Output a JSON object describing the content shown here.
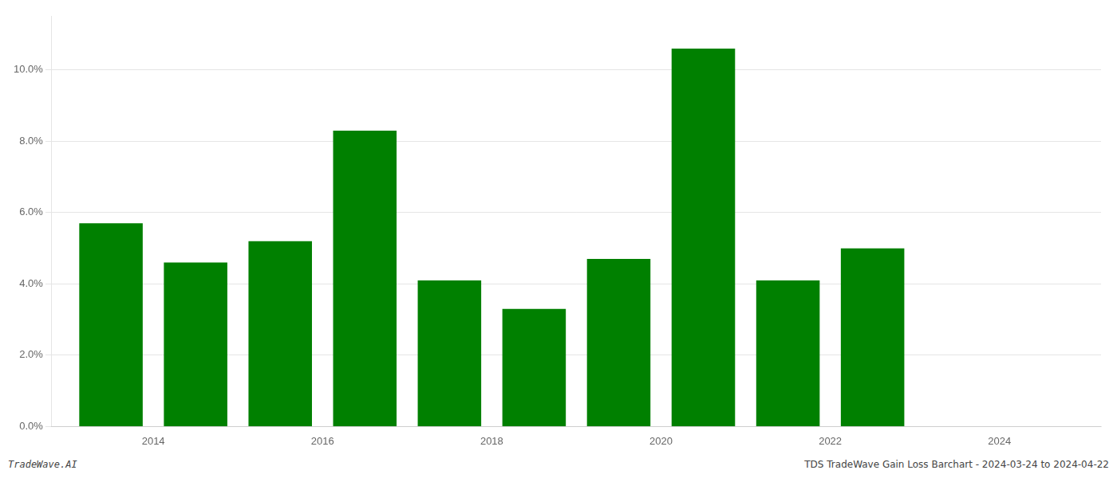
{
  "chart_data": {
    "type": "bar",
    "x": [
      2013.5,
      2014.5,
      2015.5,
      2016.5,
      2017.5,
      2018.5,
      2019.5,
      2020.5,
      2021.5,
      2022.5
    ],
    "values": [
      0.057,
      0.046,
      0.052,
      0.083,
      0.041,
      0.033,
      0.047,
      0.106,
      0.041,
      0.05
    ],
    "color": "#008000",
    "xlim": [
      2012.8,
      2025.2
    ],
    "xticks": [
      2014,
      2016,
      2018,
      2020,
      2022,
      2024
    ],
    "ylim": [
      0,
      0.115
    ],
    "yticks": [
      {
        "value": 0.0,
        "label": "0.0%"
      },
      {
        "value": 0.02,
        "label": "2.0%"
      },
      {
        "value": 0.04,
        "label": "4.0%"
      },
      {
        "value": 0.06,
        "label": "6.0%"
      },
      {
        "value": 0.08,
        "label": "8.0%"
      },
      {
        "value": 0.1,
        "label": "10.0%"
      }
    ],
    "grid": true,
    "annotations": [
      "TradeWave.AI",
      "TDS TradeWave Gain Loss Barchart - 2024-03-24 to 2024-04-22"
    ]
  }
}
